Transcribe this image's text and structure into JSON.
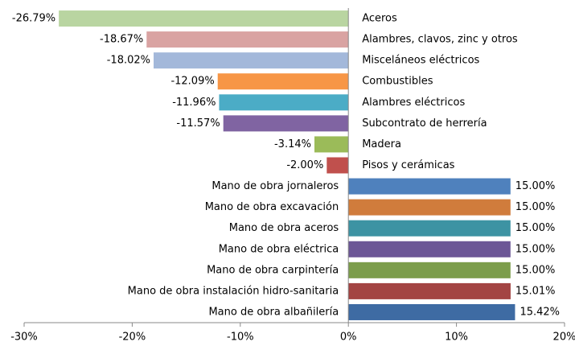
{
  "chart_data": {
    "type": "bar",
    "orientation": "horizontal",
    "categories": [
      "Aceros",
      "Alambres, clavos, zinc y otros",
      "Misceláneos eléctricos",
      "Combustibles",
      "Alambres eléctricos",
      "Subcontrato de herrería",
      "Madera",
      "Pisos y cerámicas",
      "Mano de obra jornaleros",
      "Mano de obra excavación",
      "Mano de obra aceros",
      "Mano de obra eléctrica",
      "Mano de obra carpintería",
      "Mano de obra instalación hidro-sanitaria",
      "Mano de obra albañilería"
    ],
    "values": [
      -26.79,
      -18.67,
      -18.02,
      -12.09,
      -11.96,
      -11.57,
      -3.14,
      -2.0,
      15.0,
      15.0,
      15.0,
      15.0,
      15.0,
      15.01,
      15.42
    ],
    "value_labels": [
      "-26.79%",
      "-18.67%",
      "-18.02%",
      "-12.09%",
      "-11.96%",
      "-11.57%",
      "-3.14%",
      "-2.00%",
      "15.00%",
      "15.00%",
      "15.00%",
      "15.00%",
      "15.00%",
      "15.01%",
      "15.42%"
    ],
    "colors": [
      "#b9d5a1",
      "#d9a3a2",
      "#a3b8da",
      "#f79646",
      "#4bacc6",
      "#8064a2",
      "#9bbb59",
      "#c0504d",
      "#4f81bd",
      "#d07c3c",
      "#3d93a3",
      "#6c5696",
      "#7c9d4b",
      "#a34443",
      "#3e6ba3"
    ],
    "xlim": [
      -30,
      20
    ],
    "xticks": [
      {
        "value": -30,
        "label": "-30%"
      },
      {
        "value": -20,
        "label": "-20%"
      },
      {
        "value": -10,
        "label": "-10%"
      },
      {
        "value": 0,
        "label": "0%"
      },
      {
        "value": 10,
        "label": "10%"
      },
      {
        "value": 20,
        "label": "20%"
      }
    ]
  }
}
